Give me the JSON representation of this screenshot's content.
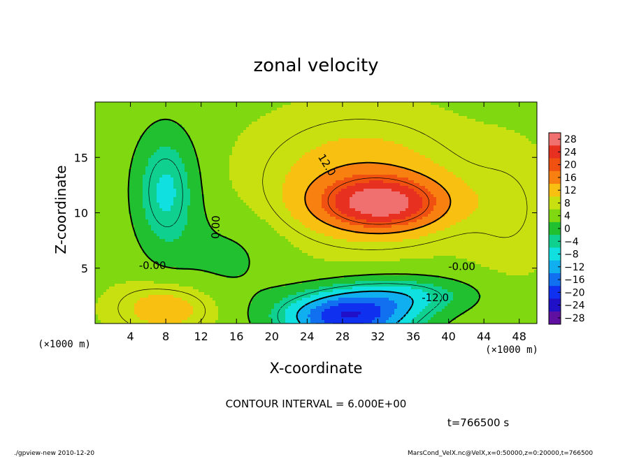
{
  "chart_data": {
    "type": "heatmap",
    "title": "zonal velocity",
    "xlabel": "X-coordinate",
    "ylabel": "Z-coordinate",
    "x_unit": "(×1000 m)",
    "xlim": [
      0,
      50
    ],
    "ylim": [
      0,
      20
    ],
    "x_ticks": [
      "4",
      "8",
      "12",
      "16",
      "20",
      "24",
      "28",
      "32",
      "36",
      "40",
      "44",
      "48"
    ],
    "x_tick_values": [
      4,
      8,
      12,
      16,
      20,
      24,
      28,
      32,
      36,
      40,
      44,
      48
    ],
    "y_ticks": [
      "5",
      "10",
      "15"
    ],
    "y_tick_values": [
      5,
      10,
      15
    ],
    "contour_interval_text": "CONTOUR INTERVAL = 6.000E+00",
    "time_text": "t=766500 s",
    "contour_labels": [
      {
        "text": "12.0",
        "x": 26.2,
        "z": 14.3,
        "rotate": 58
      },
      {
        "text": "0.00",
        "x": 13.7,
        "z": 8.7,
        "rotate": -88
      },
      {
        "text": "-0.00",
        "x": 6.5,
        "z": 5.2,
        "rotate": 0
      },
      {
        "text": "-0.00",
        "x": 41.5,
        "z": 5.1,
        "rotate": 0
      },
      {
        "text": "-12.0",
        "x": 38.5,
        "z": 2.3,
        "rotate": 0
      }
    ],
    "features": [
      {
        "name": "positive-core",
        "x": 32.5,
        "z": 10.8,
        "peak": 22
      },
      {
        "name": "negative-core",
        "x": 27.5,
        "z": 0.8,
        "peak": -23
      },
      {
        "name": "negative-upper-left",
        "x": 8.0,
        "z": 12.0,
        "peak": -9
      },
      {
        "name": "positive-lower-left",
        "x": 7.0,
        "z": 1.6,
        "peak": 12
      }
    ],
    "colorbar": {
      "levels": [
        28,
        24,
        20,
        16,
        12,
        8,
        4,
        0,
        -4,
        -8,
        -12,
        -16,
        -20,
        -24,
        -28
      ],
      "labels": [
        "28",
        "24",
        "20",
        "16",
        "12",
        "8",
        "4",
        "0",
        "−4",
        "−8",
        "−12",
        "−16",
        "−20",
        "−24",
        "−28"
      ],
      "colors": [
        "#f07070",
        "#e83020",
        "#f05010",
        "#f88010",
        "#f8c010",
        "#c8e010",
        "#80d810",
        "#20c030",
        "#10d090",
        "#10e0e0",
        "#10b0f0",
        "#1070f0",
        "#1030f0",
        "#2010c8",
        "#6010a0"
      ]
    }
  },
  "footer": {
    "left": "./gpview-new   2010-12-20",
    "right": "MarsCond_VelX.nc@VelX,x=0:50000,z=0:20000,t=766500"
  }
}
